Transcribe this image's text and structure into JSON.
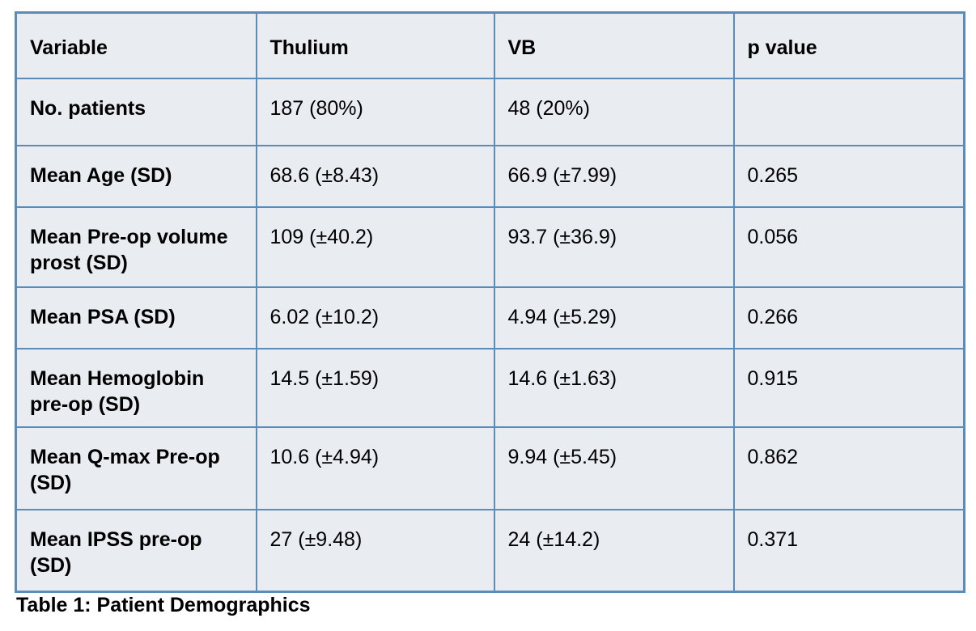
{
  "table": {
    "caption": "Table 1: Patient Demographics",
    "columns": {
      "variable": "Variable",
      "thulium": "Thulium",
      "vb": "VB",
      "p": "p value"
    },
    "rows": [
      {
        "variable": "No. patients",
        "thulium": "187 (80%)",
        "vb": "48 (20%)",
        "p": ""
      },
      {
        "variable": "Mean Age (SD)",
        "thulium": "68.6 (±8.43)",
        "vb": "66.9 (±7.99)",
        "p": "0.265"
      },
      {
        "variable": "Mean Pre-op volume prost (SD)",
        "thulium": "109 (±40.2)",
        "vb": "93.7 (±36.9)",
        "p": "0.056"
      },
      {
        "variable": "Mean PSA (SD)",
        "thulium": "6.02 (±10.2)",
        "vb": "4.94 (±5.29)",
        "p": "0.266"
      },
      {
        "variable": "Mean Hemoglobin pre-op (SD)",
        "thulium": "14.5 (±1.59)",
        "vb": "14.6 (±1.63)",
        "p": "0.915"
      },
      {
        "variable": "Mean Q-max Pre-op (SD)",
        "thulium": "10.6 (±4.94)",
        "vb": "9.94 (±5.45)",
        "p": "0.862"
      },
      {
        "variable": "Mean IPSS pre-op (SD)",
        "thulium": "27 (±9.48)",
        "vb": "24 (±14.2)",
        "p": "0.371"
      }
    ],
    "colors": {
      "border": "#5b8cb8",
      "cell_background": "#e9ecf1",
      "text": "#000000",
      "page_background": "#ffffff"
    }
  }
}
